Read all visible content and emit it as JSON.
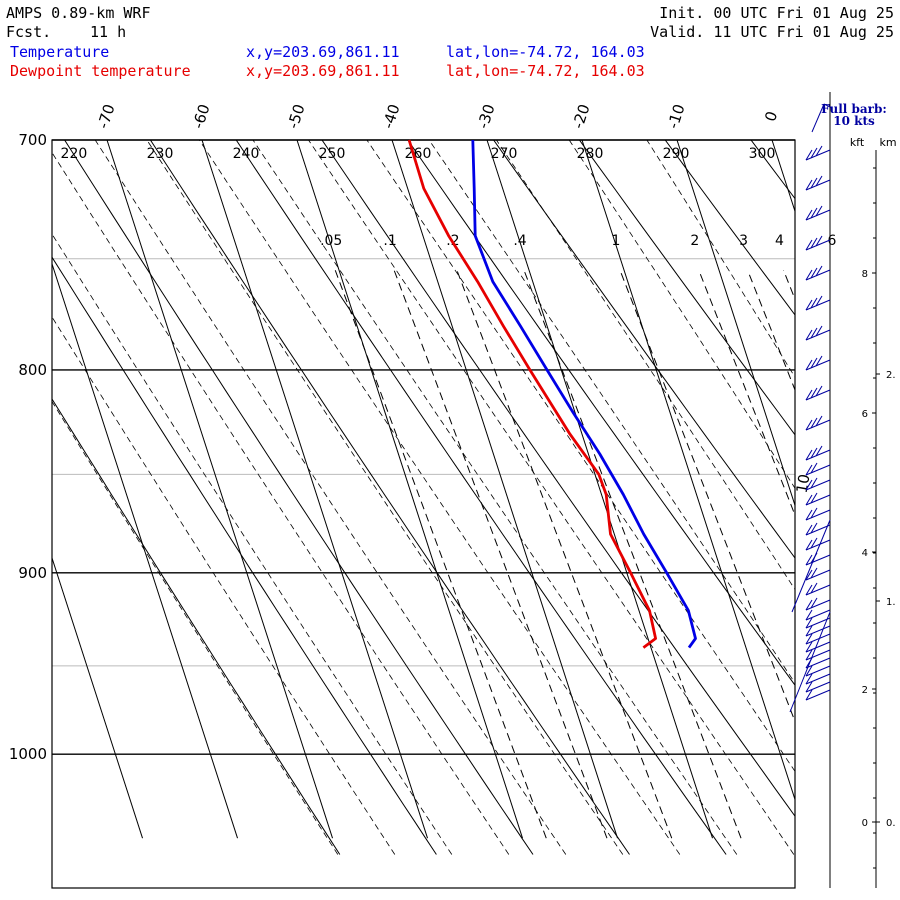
{
  "header": {
    "model": "AMPS 0.89-km WRF",
    "fcst_label": "Fcst.",
    "fcst_value": "11 h",
    "init": "Init. 00 UTC Fri 01 Aug 25",
    "valid": "Valid. 11 UTC Fri 01 Aug 25",
    "temp_label": "Temperature",
    "dew_label": "Dewpoint temperature",
    "temp_xy": "x,y=203.69,861.11",
    "temp_latlon": "lat,lon=-74.72, 164.03",
    "dew_xy": "x,y=203.69,861.11",
    "dew_latlon": "lat,lon=-74.72, 164.03",
    "temp_color": "#0000e6",
    "dew_color": "#e60000"
  },
  "wind_legend": {
    "line1": "Full barb:",
    "line2": "10 kts",
    "kft_label": "kft",
    "km_label": "km"
  },
  "chart_data": {
    "type": "line",
    "chart_kind": "skew-t log-p sounding",
    "y_axis": {
      "scale": "log",
      "unit": "hPa",
      "range": [
        700,
        1050
      ],
      "reversed": true,
      "ticks": [
        "700",
        "800",
        "900",
        "1000"
      ]
    },
    "x_axis": {
      "unit": "degC",
      "skewed": true,
      "ticks": [
        "-70",
        "-60",
        "-50",
        "-40",
        "-30",
        "-20",
        "-10",
        "0"
      ]
    },
    "dry_adiabat_labels_K": [
      "220",
      "230",
      "240",
      "250",
      "260",
      "270",
      "280",
      "290",
      "300"
    ],
    "mixing_ratio_labels_gkg": [
      ".05",
      ".1",
      ".2",
      ".4",
      "1",
      "2",
      "3",
      "4",
      "6"
    ],
    "annotation_10": "10",
    "series": [
      {
        "name": "Temperature",
        "color": "#0000e6",
        "points": [
          [
            940,
            -26.0
          ],
          [
            935,
            -25.0
          ],
          [
            920,
            -24.8
          ],
          [
            900,
            -25.8
          ],
          [
            880,
            -26.9
          ],
          [
            860,
            -27.7
          ],
          [
            840,
            -28.8
          ],
          [
            820,
            -30.2
          ],
          [
            800,
            -31.5
          ],
          [
            780,
            -32.8
          ],
          [
            760,
            -34.2
          ],
          [
            740,
            -34.5
          ],
          [
            720,
            -33.0
          ],
          [
            700,
            -31.5
          ]
        ]
      },
      {
        "name": "Dewpoint temperature",
        "color": "#e60000",
        "points": [
          [
            940,
            -30.8
          ],
          [
            935,
            -29.2
          ],
          [
            920,
            -28.9
          ],
          [
            900,
            -29.6
          ],
          [
            880,
            -30.4
          ],
          [
            860,
            -29.5
          ],
          [
            850,
            -29.6
          ],
          [
            830,
            -31.3
          ],
          [
            800,
            -33.3
          ],
          [
            780,
            -34.6
          ],
          [
            760,
            -35.8
          ],
          [
            740,
            -37.3
          ],
          [
            720,
            -38.3
          ],
          [
            700,
            -38.2
          ]
        ]
      }
    ],
    "wind_axis_km_ticks": [
      "0",
      "2",
      "4",
      "6",
      "8"
    ],
    "wind_axis_kft_ticks": [
      "0.",
      "1.",
      "2."
    ]
  }
}
